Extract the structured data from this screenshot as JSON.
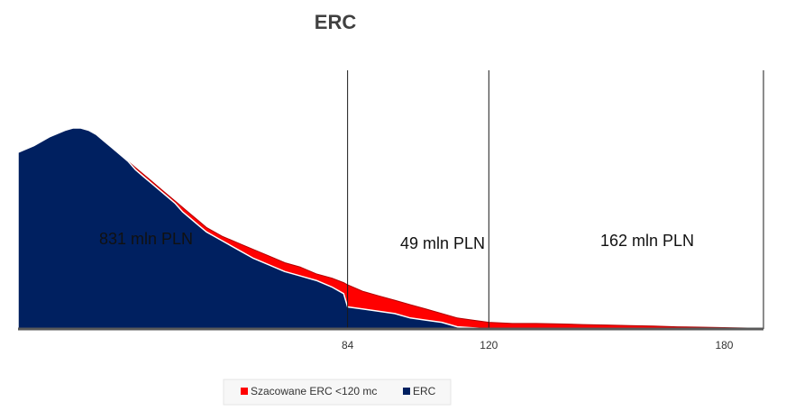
{
  "chart_data": {
    "type": "area",
    "title": "ERC",
    "xlabel": "",
    "ylabel": "",
    "xlim": [
      0,
      190
    ],
    "ylim": [
      0,
      100
    ],
    "x_ticks": [
      84,
      120,
      180
    ],
    "dividers": [
      84,
      120,
      190
    ],
    "segment_labels": [
      "831 mln PLN",
      "49 mln PLN",
      "162 mln PLN"
    ],
    "x": [
      0,
      4,
      8,
      12,
      14,
      16,
      18,
      20,
      22,
      24,
      26,
      28,
      30,
      32,
      34,
      36,
      38,
      40,
      42,
      44,
      46,
      48,
      50,
      52,
      56,
      60,
      64,
      68,
      72,
      76,
      80,
      83,
      84,
      88,
      92,
      96,
      100,
      104,
      108,
      112,
      116,
      120,
      126,
      132,
      138,
      144,
      150,
      156,
      162,
      168,
      174,
      180,
      186,
      190
    ],
    "series": [
      {
        "name": "Szacowane ERC <120 mc",
        "color": "#ff0000",
        "values": [
          80,
          83,
          87,
          90,
          91,
          91,
          90,
          88,
          85,
          82,
          79,
          76,
          73,
          70,
          67,
          64,
          61,
          58,
          55,
          52,
          49,
          46,
          44,
          42,
          39,
          36,
          33,
          30,
          28,
          25,
          23,
          21,
          20,
          17,
          15,
          13,
          11,
          9,
          7,
          5,
          4,
          3,
          2.5,
          2.5,
          2.3,
          2,
          1.8,
          1.5,
          1.3,
          1,
          0.8,
          0.6,
          0.4,
          0.3
        ]
      },
      {
        "name": "ERC",
        "color": "#002060",
        "values": [
          80,
          83,
          87,
          90,
          91,
          91,
          90,
          88,
          85,
          82,
          79,
          76,
          72,
          69,
          66,
          63,
          60,
          57,
          53,
          50,
          47,
          44,
          42,
          40,
          36,
          32,
          29,
          26,
          24,
          22,
          19,
          16,
          10,
          9,
          8,
          7,
          5,
          4,
          3,
          1,
          0.5,
          0,
          0,
          0,
          0,
          0,
          0,
          0,
          0,
          0,
          0,
          0,
          0,
          0
        ]
      }
    ],
    "legend": [
      {
        "label": "Szacowane ERC <120 mc",
        "color": "#ff0000"
      },
      {
        "label": "ERC",
        "color": "#002060"
      }
    ],
    "legend_position": "bottom"
  }
}
